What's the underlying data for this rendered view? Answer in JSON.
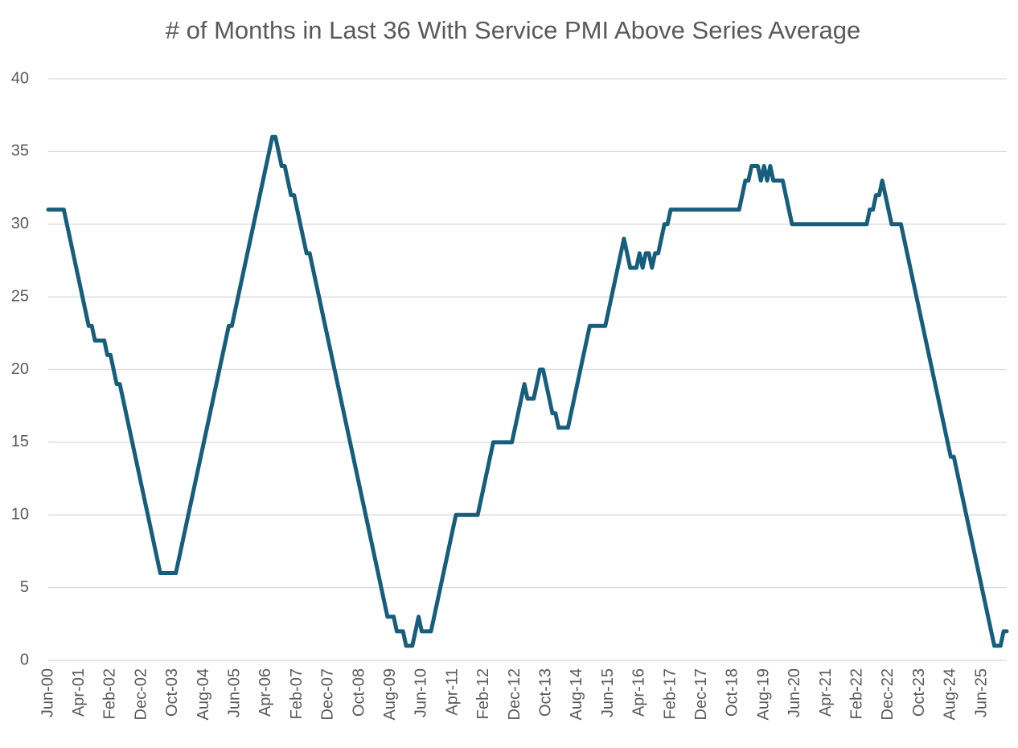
{
  "chart_data": {
    "type": "line",
    "title": "# of Months in Last 36 With Service PMI Above Series Average",
    "categories": [
      "Jun-00",
      null,
      null,
      null,
      null,
      null,
      null,
      null,
      null,
      null,
      "Apr-01",
      null,
      null,
      null,
      null,
      null,
      null,
      null,
      null,
      null,
      "Feb-02",
      null,
      null,
      null,
      null,
      null,
      null,
      null,
      null,
      null,
      "Dec-02",
      null,
      null,
      null,
      null,
      null,
      null,
      null,
      null,
      null,
      "Oct-03",
      null,
      null,
      null,
      null,
      null,
      null,
      null,
      null,
      null,
      "Aug-04",
      null,
      null,
      null,
      null,
      null,
      null,
      null,
      null,
      null,
      "Jun-05",
      null,
      null,
      null,
      null,
      null,
      null,
      null,
      null,
      null,
      "Apr-06",
      null,
      null,
      null,
      null,
      null,
      null,
      null,
      null,
      null,
      "Feb-07",
      null,
      null,
      null,
      null,
      null,
      null,
      null,
      null,
      null,
      "Dec-07",
      null,
      null,
      null,
      null,
      null,
      null,
      null,
      null,
      null,
      "Oct-08",
      null,
      null,
      null,
      null,
      null,
      null,
      null,
      null,
      null,
      "Aug-09",
      null,
      null,
      null,
      null,
      null,
      null,
      null,
      null,
      null,
      "Jun-10",
      null,
      null,
      null,
      null,
      null,
      null,
      null,
      null,
      null,
      "Apr-11",
      null,
      null,
      null,
      null,
      null,
      null,
      null,
      null,
      null,
      "Feb-12",
      null,
      null,
      null,
      null,
      null,
      null,
      null,
      null,
      null,
      "Dec-12",
      null,
      null,
      null,
      null,
      null,
      null,
      null,
      null,
      null,
      "Oct-13",
      null,
      null,
      null,
      null,
      null,
      null,
      null,
      null,
      null,
      "Aug-14",
      null,
      null,
      null,
      null,
      null,
      null,
      null,
      null,
      null,
      "Jun-15",
      null,
      null,
      null,
      null,
      null,
      null,
      null,
      null,
      null,
      "Apr-16",
      null,
      null,
      null,
      null,
      null,
      null,
      null,
      null,
      null,
      "Feb-17",
      null,
      null,
      null,
      null,
      null,
      null,
      null,
      null,
      null,
      "Dec-17",
      null,
      null,
      null,
      null,
      null,
      null,
      null,
      null,
      null,
      "Oct-18",
      null,
      null,
      null,
      null,
      null,
      null,
      null,
      null,
      null,
      "Aug-19",
      null,
      null,
      null,
      null,
      null,
      null,
      null,
      null,
      null,
      "Jun-20",
      null,
      null,
      null,
      null,
      null,
      null,
      null,
      null,
      null,
      "Apr-21",
      null,
      null,
      null,
      null,
      null,
      null,
      null,
      null,
      null,
      "Feb-22",
      null,
      null,
      null,
      null,
      null,
      null,
      null,
      null,
      null,
      "Dec-22",
      null,
      null,
      null,
      null,
      null,
      null,
      null,
      null,
      null,
      "Oct-23",
      null,
      null,
      null,
      null,
      null,
      null,
      null,
      null,
      null,
      "Aug-24",
      null,
      null,
      null,
      null,
      null,
      null,
      null,
      null,
      null,
      "Jun-25",
      null,
      null,
      null,
      null,
      null,
      null,
      null,
      null
    ],
    "values": [
      31,
      31,
      31,
      31,
      31,
      31,
      30,
      29,
      28,
      27,
      26,
      25,
      24,
      23,
      23,
      22,
      22,
      22,
      22,
      21,
      21,
      20,
      19,
      19,
      18,
      17,
      16,
      15,
      14,
      13,
      12,
      11,
      10,
      9,
      8,
      7,
      6,
      6,
      6,
      6,
      6,
      6,
      7,
      8,
      9,
      10,
      11,
      12,
      13,
      14,
      15,
      16,
      17,
      18,
      19,
      20,
      21,
      22,
      23,
      23,
      24,
      25,
      26,
      27,
      28,
      29,
      30,
      31,
      32,
      33,
      34,
      35,
      36,
      36,
      35,
      34,
      34,
      33,
      32,
      32,
      31,
      30,
      29,
      28,
      28,
      27,
      26,
      25,
      24,
      23,
      22,
      21,
      20,
      19,
      18,
      17,
      16,
      15,
      14,
      13,
      12,
      11,
      10,
      9,
      8,
      7,
      6,
      5,
      4,
      3,
      3,
      3,
      2,
      2,
      2,
      1,
      1,
      1,
      2,
      3,
      2,
      2,
      2,
      2,
      3,
      4,
      5,
      6,
      7,
      8,
      9,
      10,
      10,
      10,
      10,
      10,
      10,
      10,
      10,
      11,
      12,
      13,
      14,
      15,
      15,
      15,
      15,
      15,
      15,
      15,
      16,
      17,
      18,
      19,
      18,
      18,
      18,
      19,
      20,
      20,
      19,
      18,
      17,
      17,
      16,
      16,
      16,
      16,
      17,
      18,
      19,
      20,
      21,
      22,
      23,
      23,
      23,
      23,
      23,
      23,
      24,
      25,
      26,
      27,
      28,
      29,
      28,
      27,
      27,
      27,
      28,
      27,
      28,
      28,
      27,
      28,
      28,
      29,
      30,
      30,
      31,
      31,
      31,
      31,
      31,
      31,
      31,
      31,
      31,
      31,
      31,
      31,
      31,
      31,
      31,
      31,
      31,
      31,
      31,
      31,
      31,
      31,
      31,
      32,
      33,
      33,
      34,
      34,
      34,
      33,
      34,
      33,
      34,
      33,
      33,
      33,
      33,
      32,
      31,
      30,
      30,
      30,
      30,
      30,
      30,
      30,
      30,
      30,
      30,
      30,
      30,
      30,
      30,
      30,
      30,
      30,
      30,
      30,
      30,
      30,
      30,
      30,
      30,
      30,
      31,
      31,
      32,
      32,
      33,
      32,
      31,
      30,
      30,
      30,
      30,
      29,
      28,
      27,
      26,
      25,
      24,
      23,
      22,
      21,
      20,
      19,
      18,
      17,
      16,
      15,
      14,
      14,
      13,
      12,
      11,
      10,
      9,
      8,
      7,
      6,
      5,
      4,
      3,
      2,
      1,
      1,
      1,
      2,
      2
    ],
    "color": "#175e7c",
    "ylim": [
      0,
      40
    ],
    "yticks": [
      0,
      5,
      10,
      15,
      20,
      25,
      30,
      35,
      40
    ],
    "grid": true
  }
}
